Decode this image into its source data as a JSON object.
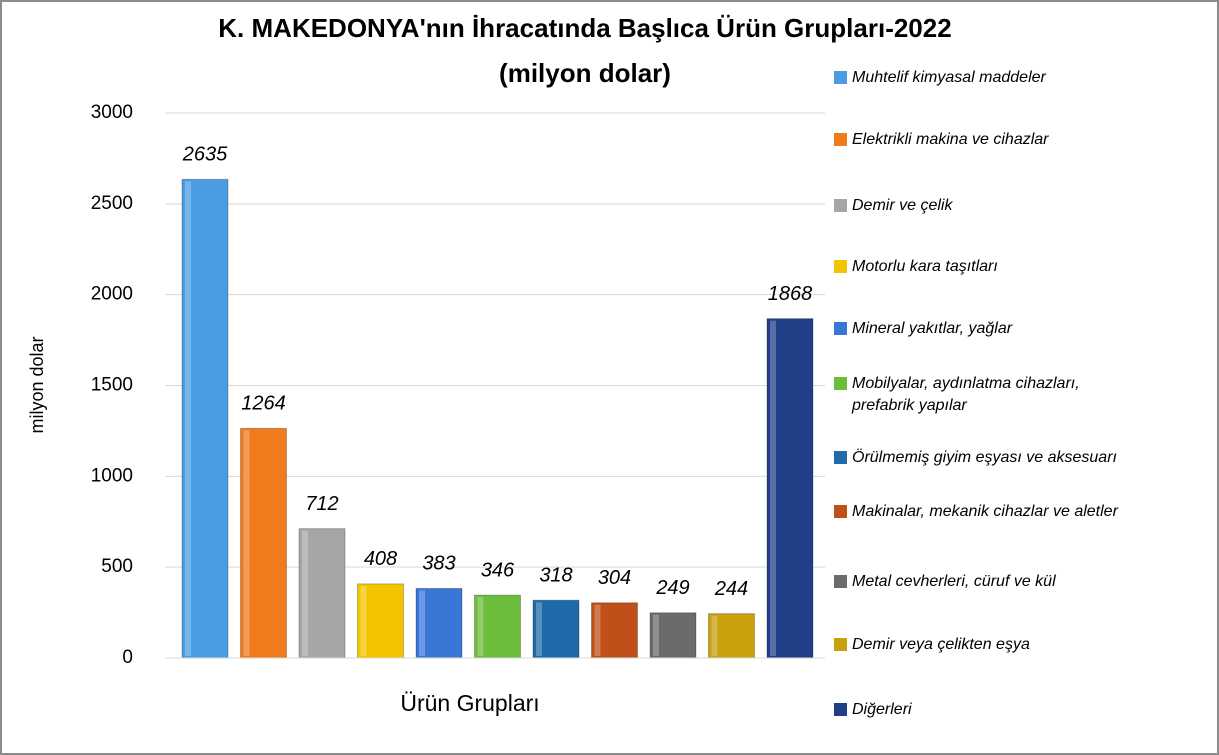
{
  "chart_data": {
    "type": "bar",
    "title": "K. MAKEDONYA'nın İhracatında Başlıca Ürün Grupları-2022",
    "subtitle": "(milyon dolar)",
    "xlabel": "Ürün Grupları",
    "ylabel": "milyon dolar",
    "ylim": [
      0,
      3000
    ],
    "yticks": [
      0,
      500,
      1000,
      1500,
      2000,
      2500,
      3000
    ],
    "grid": true,
    "legend": "right",
    "series": [
      {
        "name": "Muhtelif kimyasal maddeler",
        "color": "#4a9de0",
        "values": [
          2635
        ]
      },
      {
        "name": "Elektrikli makina ve cihazlar",
        "color": "#f07b1c",
        "values": [
          1264
        ]
      },
      {
        "name": "Demir ve çelik",
        "color": "#a6a6a6",
        "values": [
          712
        ]
      },
      {
        "name": "Motorlu kara taşıtları",
        "color": "#f5c400",
        "values": [
          408
        ]
      },
      {
        "name": "Mineral yakıtlar, yağlar",
        "color": "#3a76d6",
        "values": [
          383
        ]
      },
      {
        "name": "Mobilyalar, aydınlatma cihazları, prefabrik yapılar",
        "color": "#6cbd3c",
        "values": [
          346
        ]
      },
      {
        "name": "Örülmemiş giyim eşyası ve aksesuarı",
        "color": "#1f6aab",
        "values": [
          318
        ]
      },
      {
        "name": "Makinalar, mekanik cihazlar ve aletler",
        "color": "#c0501a",
        "values": [
          304
        ]
      },
      {
        "name": "Metal cevherleri, cüruf ve kül",
        "color": "#6b6b6b",
        "values": [
          249
        ]
      },
      {
        "name": "Demir veya çelikten eşya",
        "color": "#c9a00e",
        "values": [
          244
        ]
      },
      {
        "name": "Diğerleri",
        "color": "#1f3f86",
        "values": [
          1868
        ]
      }
    ]
  }
}
